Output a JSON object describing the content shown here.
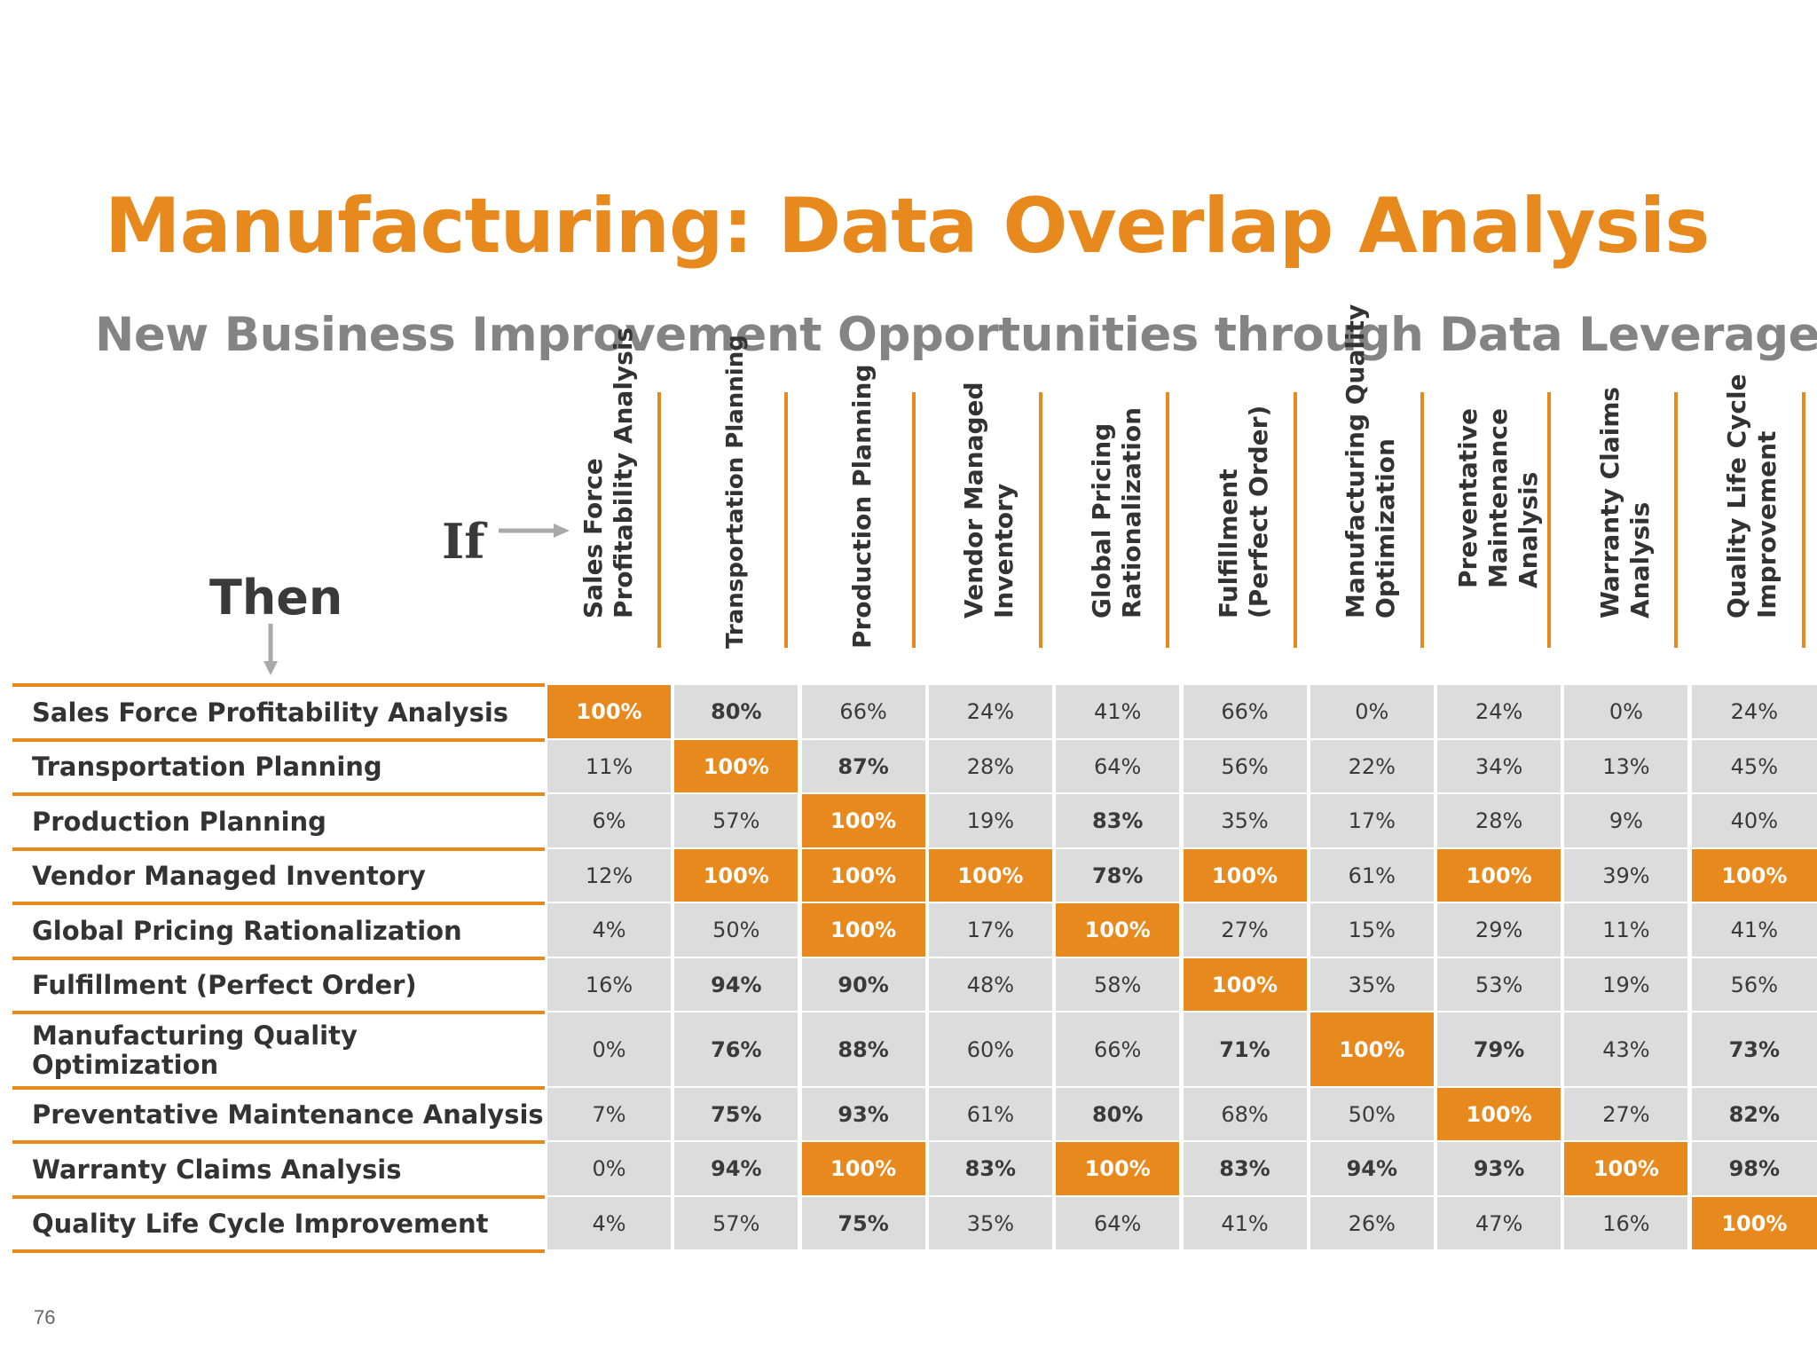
{
  "title": "Manufacturing: Data Overlap Analysis",
  "subtitle": "New Business Improvement Opportunities through Data Leverage",
  "if_label": "If",
  "then_label": "Then",
  "page_number": "76",
  "colors": {
    "accent": "#E8891E",
    "cell_bg": "#DCDCDC",
    "subtitle": "#848484"
  },
  "columns": [
    [
      "Sales Force",
      "Profitability Analysis"
    ],
    [
      "Transportation Planning"
    ],
    [
      "Production Planning"
    ],
    [
      "Vendor Managed",
      "Inventory"
    ],
    [
      "Global Pricing",
      "Rationalization"
    ],
    [
      "Fulfillment",
      "(Perfect Order)"
    ],
    [
      "Manufacturing Quality",
      "Optimization"
    ],
    [
      "Preventative",
      "Maintenance",
      "Analysis"
    ],
    [
      "Warranty Claims",
      "Analysis"
    ],
    [
      "Quality Life Cycle",
      "Improvement"
    ]
  ],
  "rows": [
    {
      "label": [
        "Sales Force Profitability Analysis"
      ],
      "values": [
        "100%",
        "80%",
        "66%",
        "24%",
        "41%",
        "66%",
        "0%",
        "24%",
        "0%",
        "24%"
      ],
      "emphasis": [
        "hi",
        "bold",
        "",
        "",
        "",
        "",
        "",
        "",
        "",
        ""
      ]
    },
    {
      "label": [
        "Transportation Planning"
      ],
      "values": [
        "11%",
        "100%",
        "87%",
        "28%",
        "64%",
        "56%",
        "22%",
        "34%",
        "13%",
        "45%"
      ],
      "emphasis": [
        "",
        "hi",
        "bold",
        "",
        "",
        "",
        "",
        "",
        "",
        ""
      ]
    },
    {
      "label": [
        "Production Planning"
      ],
      "values": [
        "6%",
        "57%",
        "100%",
        "19%",
        "83%",
        "35%",
        "17%",
        "28%",
        "9%",
        "40%"
      ],
      "emphasis": [
        "",
        "",
        "hi",
        "",
        "bold",
        "",
        "",
        "",
        "",
        ""
      ]
    },
    {
      "label": [
        "Vendor Managed Inventory"
      ],
      "values": [
        "12%",
        "100%",
        "100%",
        "100%",
        "78%",
        "100%",
        "61%",
        "100%",
        "39%",
        "100%"
      ],
      "emphasis": [
        "",
        "hi",
        "hi",
        "hi",
        "bold",
        "hi",
        "",
        "hi",
        "",
        "hi"
      ]
    },
    {
      "label": [
        "Global Pricing Rationalization"
      ],
      "values": [
        "4%",
        "50%",
        "100%",
        "17%",
        "100%",
        "27%",
        "15%",
        "29%",
        "11%",
        "41%"
      ],
      "emphasis": [
        "",
        "",
        "hi",
        "",
        "hi",
        "",
        "",
        "",
        "",
        ""
      ]
    },
    {
      "label": [
        "Fulfillment (Perfect Order)"
      ],
      "values": [
        "16%",
        "94%",
        "90%",
        "48%",
        "58%",
        "100%",
        "35%",
        "53%",
        "19%",
        "56%"
      ],
      "emphasis": [
        "",
        "bold",
        "bold",
        "",
        "",
        "hi",
        "",
        "",
        "",
        ""
      ]
    },
    {
      "label": [
        "Manufacturing Quality",
        "Optimization"
      ],
      "values": [
        "0%",
        "76%",
        "88%",
        "60%",
        "66%",
        "71%",
        "100%",
        "79%",
        "43%",
        "73%"
      ],
      "emphasis": [
        "",
        "bold",
        "bold",
        "",
        "",
        "bold",
        "hi",
        "bold",
        "",
        "bold"
      ]
    },
    {
      "label": [
        "Preventative Maintenance Analysis"
      ],
      "values": [
        "7%",
        "75%",
        "93%",
        "61%",
        "80%",
        "68%",
        "50%",
        "100%",
        "27%",
        "82%"
      ],
      "emphasis": [
        "",
        "bold",
        "bold",
        "",
        "bold",
        "",
        "",
        "hi",
        "",
        "bold"
      ]
    },
    {
      "label": [
        "Warranty Claims Analysis"
      ],
      "values": [
        "0%",
        "94%",
        "100%",
        "83%",
        "100%",
        "83%",
        "94%",
        "93%",
        "100%",
        "98%"
      ],
      "emphasis": [
        "",
        "bold",
        "hi",
        "bold",
        "hi",
        "bold",
        "bold",
        "bold",
        "hi",
        "bold"
      ]
    },
    {
      "label": [
        "Quality Life Cycle Improvement"
      ],
      "values": [
        "4%",
        "57%",
        "75%",
        "35%",
        "64%",
        "41%",
        "26%",
        "47%",
        "16%",
        "100%"
      ],
      "emphasis": [
        "",
        "",
        "bold",
        "",
        "",
        "",
        "",
        "",
        "",
        "hi"
      ]
    }
  ]
}
